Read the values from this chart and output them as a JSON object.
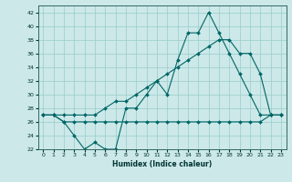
{
  "xlabel": "Humidex (Indice chaleur)",
  "background_color": "#cce8e8",
  "grid_color": "#99cccc",
  "line_color": "#006666",
  "xlim": [
    -0.5,
    23.5
  ],
  "ylim": [
    22,
    43
  ],
  "yticks": [
    22,
    24,
    26,
    28,
    30,
    32,
    34,
    36,
    38,
    40,
    42
  ],
  "xticks": [
    0,
    1,
    2,
    3,
    4,
    5,
    6,
    7,
    8,
    9,
    10,
    11,
    12,
    13,
    14,
    15,
    16,
    17,
    18,
    19,
    20,
    21,
    22,
    23
  ],
  "line1_x": [
    0,
    1,
    2,
    3,
    4,
    5,
    6,
    7,
    8,
    9,
    10,
    11,
    12,
    13,
    14,
    15,
    16,
    17,
    18,
    19,
    20,
    21,
    22,
    23
  ],
  "line1_y": [
    27,
    27,
    26,
    24,
    22,
    23,
    22,
    22,
    28,
    28,
    30,
    32,
    30,
    35,
    39,
    39,
    42,
    39,
    36,
    33,
    30,
    27,
    27,
    27
  ],
  "line2_x": [
    0,
    1,
    2,
    3,
    4,
    5,
    6,
    7,
    8,
    9,
    10,
    11,
    12,
    13,
    14,
    15,
    16,
    17,
    18,
    19,
    20,
    21,
    22,
    23
  ],
  "line2_y": [
    27,
    27,
    27,
    27,
    27,
    27,
    28,
    29,
    29,
    30,
    31,
    32,
    33,
    34,
    35,
    36,
    37,
    38,
    38,
    36,
    36,
    33,
    27,
    27
  ],
  "line3_x": [
    0,
    1,
    2,
    3,
    4,
    5,
    6,
    7,
    8,
    9,
    10,
    11,
    12,
    13,
    14,
    15,
    16,
    17,
    18,
    19,
    20,
    21,
    22,
    23
  ],
  "line3_y": [
    27,
    27,
    26,
    26,
    26,
    26,
    26,
    26,
    26,
    26,
    26,
    26,
    26,
    26,
    26,
    26,
    26,
    26,
    26,
    26,
    26,
    26,
    27,
    27
  ]
}
